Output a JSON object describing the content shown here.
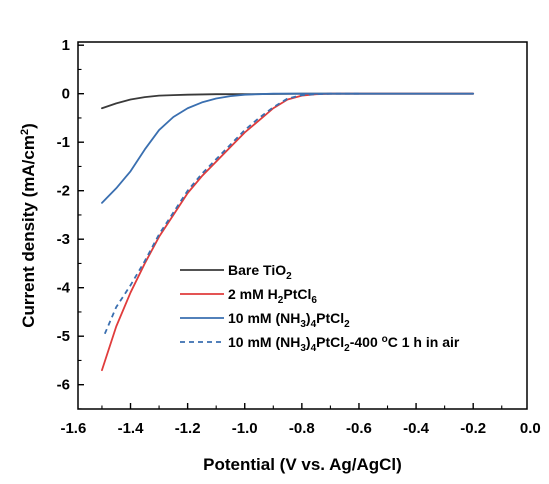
{
  "chart_data": {
    "type": "line",
    "xlabel": "Potential (V vs. Ag/AgCl)",
    "ylabel": "Current density (mA/cm²)",
    "ylabel_parts": [
      "Current density (mA/cm",
      "2",
      ")"
    ],
    "xlim": [
      -1.6,
      0.0
    ],
    "ylim": [
      -6.5,
      1.0
    ],
    "x_ticks": [
      -1.6,
      -1.4,
      -1.2,
      -1.0,
      -0.8,
      -0.6,
      -0.4,
      -0.2,
      0.0
    ],
    "x_tick_labels": [
      "-1.6",
      "-1.4",
      "-1.2",
      "-1.0",
      "-0.8",
      "-0.6",
      "-0.4",
      "-0.2",
      "0.0"
    ],
    "y_ticks": [
      1,
      0,
      -1,
      -2,
      -3,
      -4,
      -5,
      -6
    ],
    "y_tick_labels": [
      "1",
      "0",
      "-1",
      "-2",
      "-3",
      "-4",
      "-5",
      "-6"
    ],
    "grid": false,
    "legend_position": "bottom-right",
    "series": [
      {
        "name": "Bare TiO2",
        "label_parts": [
          [
            "Bare TiO",
            "n"
          ],
          [
            "2",
            "sub"
          ]
        ],
        "color": "#3a3a3a",
        "dash": "solid",
        "x": [
          -1.5,
          -1.45,
          -1.4,
          -1.35,
          -1.3,
          -1.25,
          -1.2,
          -1.1,
          -1.0,
          -0.8,
          -0.6,
          -0.4,
          -0.2
        ],
        "y": [
          -0.3,
          -0.2,
          -0.12,
          -0.07,
          -0.04,
          -0.03,
          -0.02,
          -0.01,
          -0.01,
          0.0,
          0.0,
          0.0,
          0.0
        ]
      },
      {
        "name": "2 mM H2PtCl6",
        "label_parts": [
          [
            "2 mM H",
            "n"
          ],
          [
            "2",
            "sub"
          ],
          [
            "PtCl",
            "n"
          ],
          [
            "6",
            "sub"
          ]
        ],
        "color": "#e03c3c",
        "dash": "solid",
        "x": [
          -1.5,
          -1.45,
          -1.4,
          -1.35,
          -1.3,
          -1.25,
          -1.2,
          -1.15,
          -1.1,
          -1.05,
          -1.0,
          -0.95,
          -0.9,
          -0.85,
          -0.8,
          -0.75,
          -0.7,
          -0.6,
          -0.4,
          -0.2
        ],
        "y": [
          -5.7,
          -4.8,
          -4.1,
          -3.5,
          -2.95,
          -2.5,
          -2.05,
          -1.7,
          -1.4,
          -1.1,
          -0.8,
          -0.55,
          -0.3,
          -0.12,
          -0.04,
          -0.01,
          0.0,
          0.0,
          0.0,
          0.0
        ]
      },
      {
        "name": "10 mM (NH3)4PtCl2",
        "label_parts": [
          [
            "10 mM (NH",
            "n"
          ],
          [
            "3",
            "sub"
          ],
          [
            ")",
            "n"
          ],
          [
            "4",
            "sub"
          ],
          [
            "PtCl",
            "n"
          ],
          [
            "2",
            "sub"
          ]
        ],
        "color": "#3a6fb0",
        "dash": "solid",
        "x": [
          -1.5,
          -1.45,
          -1.4,
          -1.35,
          -1.3,
          -1.25,
          -1.2,
          -1.15,
          -1.1,
          -1.05,
          -1.0,
          -0.95,
          -0.9,
          -0.8,
          -0.6,
          -0.4,
          -0.2
        ],
        "y": [
          -2.25,
          -1.95,
          -1.6,
          -1.15,
          -0.75,
          -0.48,
          -0.3,
          -0.18,
          -0.1,
          -0.05,
          -0.02,
          -0.01,
          0.0,
          0.0,
          0.0,
          0.0,
          0.0
        ]
      },
      {
        "name": "10 mM (NH3)4PtCl2-400 °C 1 h in air",
        "label_parts": [
          [
            "10 mM (NH",
            "n"
          ],
          [
            "3",
            "sub"
          ],
          [
            ")",
            "n"
          ],
          [
            "4",
            "sub"
          ],
          [
            "PtCl",
            "n"
          ],
          [
            "2",
            "sub"
          ],
          [
            "-400 ",
            "n"
          ],
          [
            "o",
            "sup"
          ],
          [
            "C 1 h in air",
            "n"
          ]
        ],
        "color": "#3a6fb0",
        "dash": "dashed",
        "x": [
          -1.49,
          -1.45,
          -1.4,
          -1.35,
          -1.3,
          -1.25,
          -1.2,
          -1.15,
          -1.1,
          -1.05,
          -1.0,
          -0.95,
          -0.9,
          -0.85,
          -0.8,
          -0.75,
          -0.7,
          -0.6
        ],
        "y": [
          -4.95,
          -4.4,
          -3.95,
          -3.45,
          -2.9,
          -2.45,
          -2.0,
          -1.65,
          -1.35,
          -1.05,
          -0.75,
          -0.5,
          -0.28,
          -0.1,
          -0.03,
          -0.01,
          0.0,
          0.0
        ]
      }
    ]
  }
}
